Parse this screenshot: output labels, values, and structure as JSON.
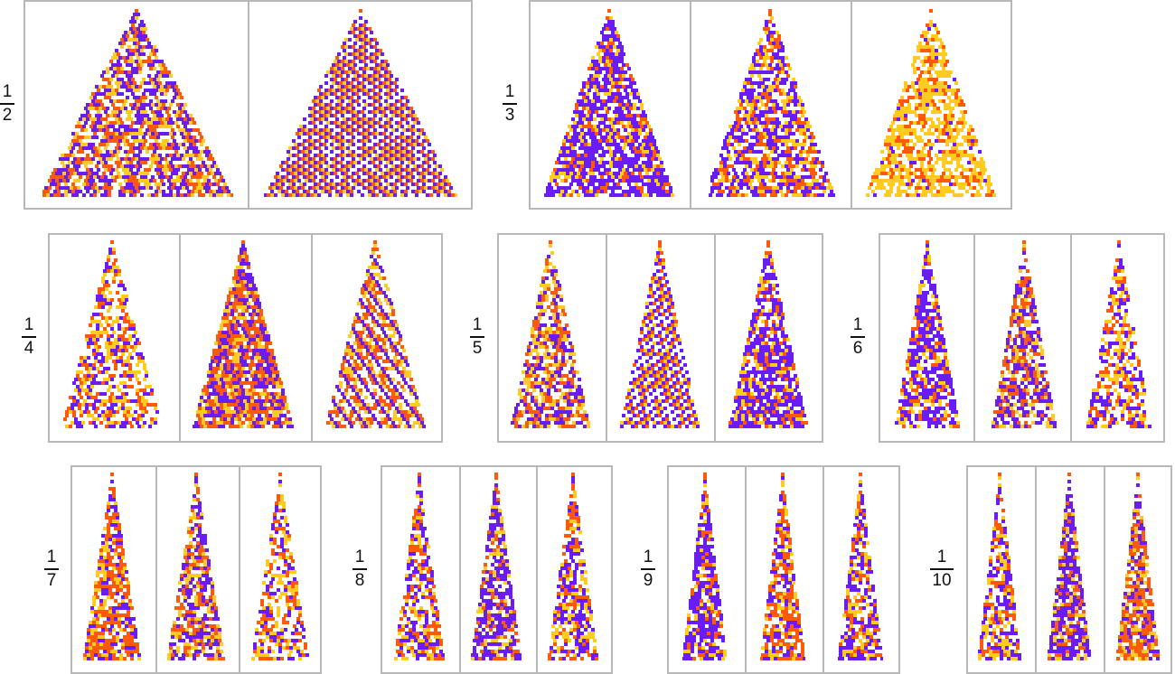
{
  "palette": {
    "empty": "#ffffff",
    "purple": "#6a1cf5",
    "orange": "#ff5a0a",
    "yellow": "#ffcb21",
    "frame": "#b8b8b8"
  },
  "groups": [
    {
      "numerator": "1",
      "denominator": "2",
      "panels": [
        {
          "seed": 11,
          "style": "random"
        },
        {
          "seed": 27,
          "style": "striped"
        }
      ]
    },
    {
      "numerator": "1",
      "denominator": "3",
      "panels": [
        {
          "seed": 5,
          "style": "purple"
        },
        {
          "seed": 41,
          "style": "random"
        },
        {
          "seed": 3,
          "style": "yellow"
        }
      ]
    },
    {
      "numerator": "1",
      "denominator": "4",
      "panels": [
        {
          "seed": 14,
          "style": "sparse"
        },
        {
          "seed": 33,
          "style": "dense"
        },
        {
          "seed": 52,
          "style": "diagonal"
        }
      ]
    },
    {
      "numerator": "1",
      "denominator": "5",
      "panels": [
        {
          "seed": 61,
          "style": "random"
        },
        {
          "seed": 8,
          "style": "striped"
        },
        {
          "seed": 19,
          "style": "purple"
        }
      ]
    },
    {
      "numerator": "1",
      "denominator": "6",
      "panels": [
        {
          "seed": 23,
          "style": "purple"
        },
        {
          "seed": 71,
          "style": "random"
        },
        {
          "seed": 44,
          "style": "sparse"
        }
      ]
    },
    {
      "numerator": "1",
      "denominator": "7",
      "panels": [
        {
          "seed": 90,
          "style": "orange"
        },
        {
          "seed": 12,
          "style": "random"
        },
        {
          "seed": 36,
          "style": "sparse"
        }
      ]
    },
    {
      "numerator": "1",
      "denominator": "8",
      "panels": [
        {
          "seed": 55,
          "style": "random"
        },
        {
          "seed": 18,
          "style": "purple"
        },
        {
          "seed": 77,
          "style": "random"
        }
      ]
    },
    {
      "numerator": "1",
      "denominator": "9",
      "panels": [
        {
          "seed": 29,
          "style": "purple"
        },
        {
          "seed": 63,
          "style": "orange"
        },
        {
          "seed": 47,
          "style": "random"
        }
      ]
    },
    {
      "numerator": "1",
      "denominator": "10",
      "panels": [
        {
          "seed": 82,
          "style": "random"
        },
        {
          "seed": 15,
          "style": "purple"
        },
        {
          "seed": 38,
          "style": "orange"
        }
      ]
    }
  ]
}
